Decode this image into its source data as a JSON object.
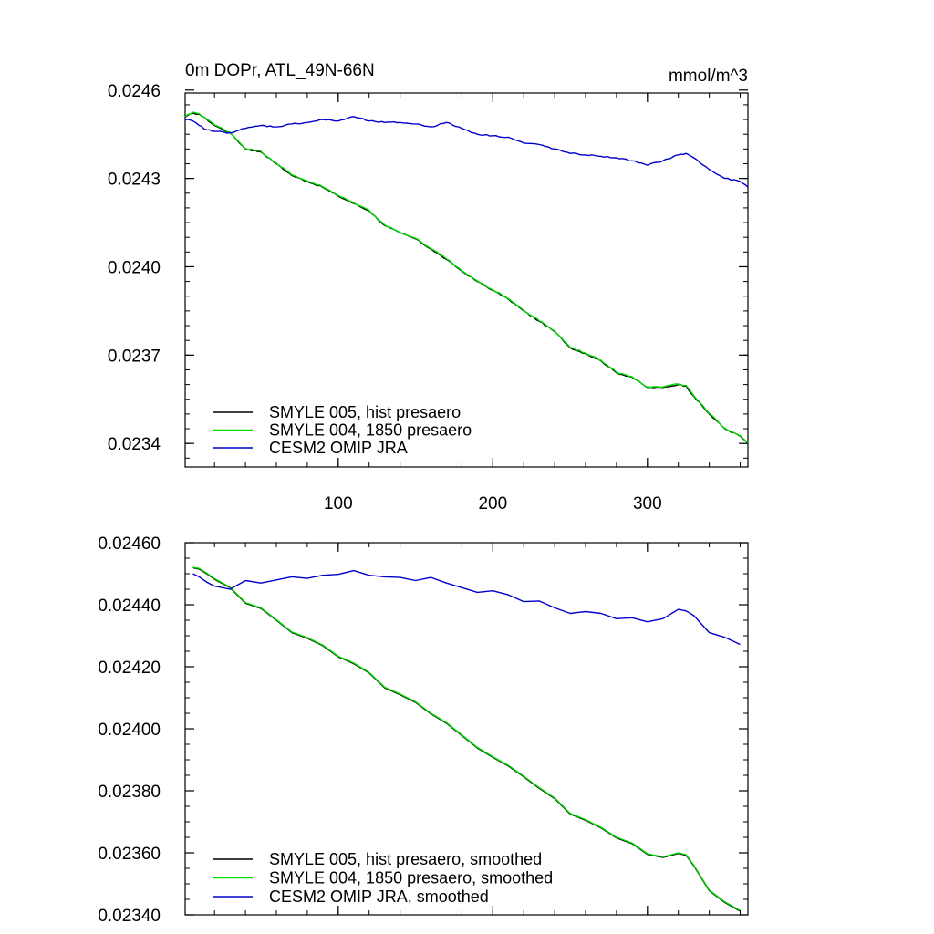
{
  "chart_data": [
    {
      "type": "line",
      "title": "0m DOPr, ATL_49N-66N",
      "units": "mmol/m^3",
      "xlabel": "",
      "ylabel": "",
      "xlim": [
        1,
        365
      ],
      "ylim": [
        0.02332,
        0.02459
      ],
      "yticks": [
        0.0234,
        0.0237,
        0.024,
        0.0243,
        0.0246
      ],
      "ytick_labels": [
        "0.0234",
        "0.0237",
        "0.0240",
        "0.0243",
        "0.0246"
      ],
      "xticks": [
        100,
        200,
        300
      ],
      "xtick_labels": [
        "100",
        "200",
        "300"
      ],
      "legend_position": "bottom-left",
      "series": [
        {
          "name": "SMYLE 005, hist presaero",
          "color": "#000000",
          "x": [
            1,
            6,
            10,
            15,
            20,
            30,
            40,
            50,
            60,
            70,
            80,
            90,
            100,
            110,
            120,
            130,
            140,
            150,
            160,
            170,
            180,
            190,
            200,
            210,
            220,
            230,
            240,
            250,
            260,
            270,
            280,
            290,
            300,
            310,
            320,
            325,
            330,
            340,
            350,
            360,
            365
          ],
          "values": [
            0.024508,
            0.024522,
            0.024518,
            0.0245,
            0.02448,
            0.024455,
            0.0244,
            0.02439,
            0.02435,
            0.02431,
            0.02429,
            0.02427,
            0.02424,
            0.024215,
            0.02419,
            0.02414,
            0.024115,
            0.024095,
            0.02406,
            0.024025,
            0.023985,
            0.02395,
            0.02392,
            0.02389,
            0.02385,
            0.023815,
            0.02378,
            0.023725,
            0.023705,
            0.02368,
            0.02364,
            0.023625,
            0.02359,
            0.02359,
            0.0236,
            0.023595,
            0.02356,
            0.0235,
            0.02345,
            0.023425,
            0.0234
          ]
        },
        {
          "name": "SMYLE 004, 1850 presaero",
          "color": "#00dd00",
          "x": [
            1,
            6,
            10,
            15,
            20,
            30,
            40,
            50,
            60,
            70,
            80,
            90,
            100,
            110,
            120,
            130,
            140,
            150,
            160,
            170,
            180,
            190,
            200,
            210,
            220,
            230,
            240,
            250,
            260,
            270,
            280,
            290,
            300,
            310,
            320,
            325,
            330,
            340,
            350,
            360,
            365
          ],
          "values": [
            0.02451,
            0.024525,
            0.02452,
            0.024502,
            0.024482,
            0.024457,
            0.024402,
            0.024392,
            0.024352,
            0.024312,
            0.024292,
            0.024272,
            0.024242,
            0.024217,
            0.024192,
            0.024142,
            0.024117,
            0.024097,
            0.024062,
            0.024027,
            0.023987,
            0.023952,
            0.023922,
            0.023892,
            0.023852,
            0.023817,
            0.023782,
            0.023727,
            0.023707,
            0.023682,
            0.023642,
            0.023627,
            0.023592,
            0.023592,
            0.023602,
            0.023597,
            0.023562,
            0.023502,
            0.023452,
            0.023427,
            0.023402
          ]
        },
        {
          "name": "CESM2 OMIP JRA",
          "color": "#0000cc",
          "x": [
            1,
            6,
            10,
            15,
            20,
            30,
            40,
            50,
            60,
            70,
            80,
            90,
            100,
            110,
            120,
            130,
            140,
            150,
            160,
            170,
            180,
            190,
            200,
            210,
            220,
            230,
            240,
            250,
            260,
            270,
            280,
            290,
            300,
            310,
            320,
            325,
            330,
            340,
            350,
            360,
            365
          ],
          "values": [
            0.0245,
            0.024495,
            0.02448,
            0.024465,
            0.02446,
            0.024455,
            0.02447,
            0.02448,
            0.024475,
            0.024485,
            0.02449,
            0.0245,
            0.024495,
            0.02451,
            0.024495,
            0.02449,
            0.02449,
            0.024485,
            0.024475,
            0.02449,
            0.02447,
            0.02445,
            0.024445,
            0.02444,
            0.02442,
            0.024415,
            0.0244,
            0.024385,
            0.02438,
            0.024375,
            0.02437,
            0.02436,
            0.024345,
            0.02436,
            0.02438,
            0.024385,
            0.02437,
            0.02433,
            0.0243,
            0.02429,
            0.02427
          ]
        }
      ]
    },
    {
      "type": "line",
      "title": "",
      "xlabel": "",
      "ylabel": "",
      "xlim": [
        1,
        365
      ],
      "ylim": [
        0.0234,
        0.0246
      ],
      "yticks": [
        0.0234,
        0.0236,
        0.0238,
        0.024,
        0.0242,
        0.0244,
        0.0246
      ],
      "ytick_labels": [
        "0.02340",
        "0.02360",
        "0.02380",
        "0.02400",
        "0.02420",
        "0.02440",
        "0.02460"
      ],
      "xticks": [
        100,
        200,
        300
      ],
      "legend_position": "bottom-left",
      "series": [
        {
          "name": "SMYLE 005, hist presaero, smoothed",
          "color": "#000000",
          "x": [
            6,
            10,
            15,
            20,
            30,
            40,
            50,
            60,
            70,
            80,
            90,
            100,
            110,
            120,
            130,
            140,
            150,
            160,
            170,
            180,
            190,
            200,
            210,
            220,
            230,
            240,
            250,
            260,
            270,
            280,
            290,
            300,
            310,
            320,
            325,
            330,
            340,
            350,
            360
          ],
          "values": [
            0.024519,
            0.024515,
            0.0245,
            0.024482,
            0.024455,
            0.024405,
            0.024388,
            0.02435,
            0.02431,
            0.024292,
            0.024268,
            0.024232,
            0.02421,
            0.02418,
            0.024132,
            0.02411,
            0.024085,
            0.024048,
            0.024018,
            0.023978,
            0.023938,
            0.023908,
            0.02388,
            0.023845,
            0.023808,
            0.023775,
            0.023725,
            0.023705,
            0.02368,
            0.023648,
            0.02363,
            0.023595,
            0.023585,
            0.023598,
            0.023592,
            0.023558,
            0.023478,
            0.02344,
            0.023412
          ]
        },
        {
          "name": "SMYLE 004, 1850 presaero, smoothed",
          "color": "#00dd00",
          "x": [
            6,
            10,
            15,
            20,
            30,
            40,
            50,
            60,
            70,
            80,
            90,
            100,
            110,
            120,
            130,
            140,
            150,
            160,
            170,
            180,
            190,
            200,
            210,
            220,
            230,
            240,
            250,
            260,
            270,
            280,
            290,
            300,
            310,
            320,
            325,
            330,
            340,
            350,
            360
          ],
          "values": [
            0.024521,
            0.024517,
            0.024502,
            0.024484,
            0.024457,
            0.024407,
            0.02439,
            0.024352,
            0.024312,
            0.024294,
            0.02427,
            0.024234,
            0.024212,
            0.024182,
            0.024134,
            0.024112,
            0.024087,
            0.02405,
            0.02402,
            0.02398,
            0.02394,
            0.02391,
            0.023882,
            0.023847,
            0.02381,
            0.023777,
            0.023727,
            0.023707,
            0.023682,
            0.02365,
            0.023632,
            0.023597,
            0.023587,
            0.0236,
            0.023594,
            0.02356,
            0.02348,
            0.023442,
            0.023414
          ]
        },
        {
          "name": "CESM2 OMIP JRA, smoothed",
          "color": "#0000cc",
          "x": [
            6,
            10,
            15,
            20,
            30,
            40,
            50,
            60,
            70,
            80,
            90,
            100,
            110,
            120,
            130,
            140,
            150,
            160,
            170,
            180,
            190,
            200,
            210,
            220,
            230,
            240,
            250,
            260,
            270,
            280,
            290,
            300,
            310,
            320,
            325,
            330,
            340,
            350,
            360
          ],
          "values": [
            0.0245,
            0.02449,
            0.024473,
            0.02446,
            0.02445,
            0.024478,
            0.02447,
            0.02448,
            0.02449,
            0.024485,
            0.024495,
            0.024498,
            0.02451,
            0.024495,
            0.02449,
            0.024488,
            0.024478,
            0.024488,
            0.02447,
            0.024455,
            0.02444,
            0.024445,
            0.024432,
            0.02441,
            0.024412,
            0.02439,
            0.024372,
            0.024378,
            0.024372,
            0.024355,
            0.024358,
            0.024345,
            0.024355,
            0.024385,
            0.02438,
            0.024365,
            0.02431,
            0.024295,
            0.024272
          ]
        }
      ]
    }
  ]
}
